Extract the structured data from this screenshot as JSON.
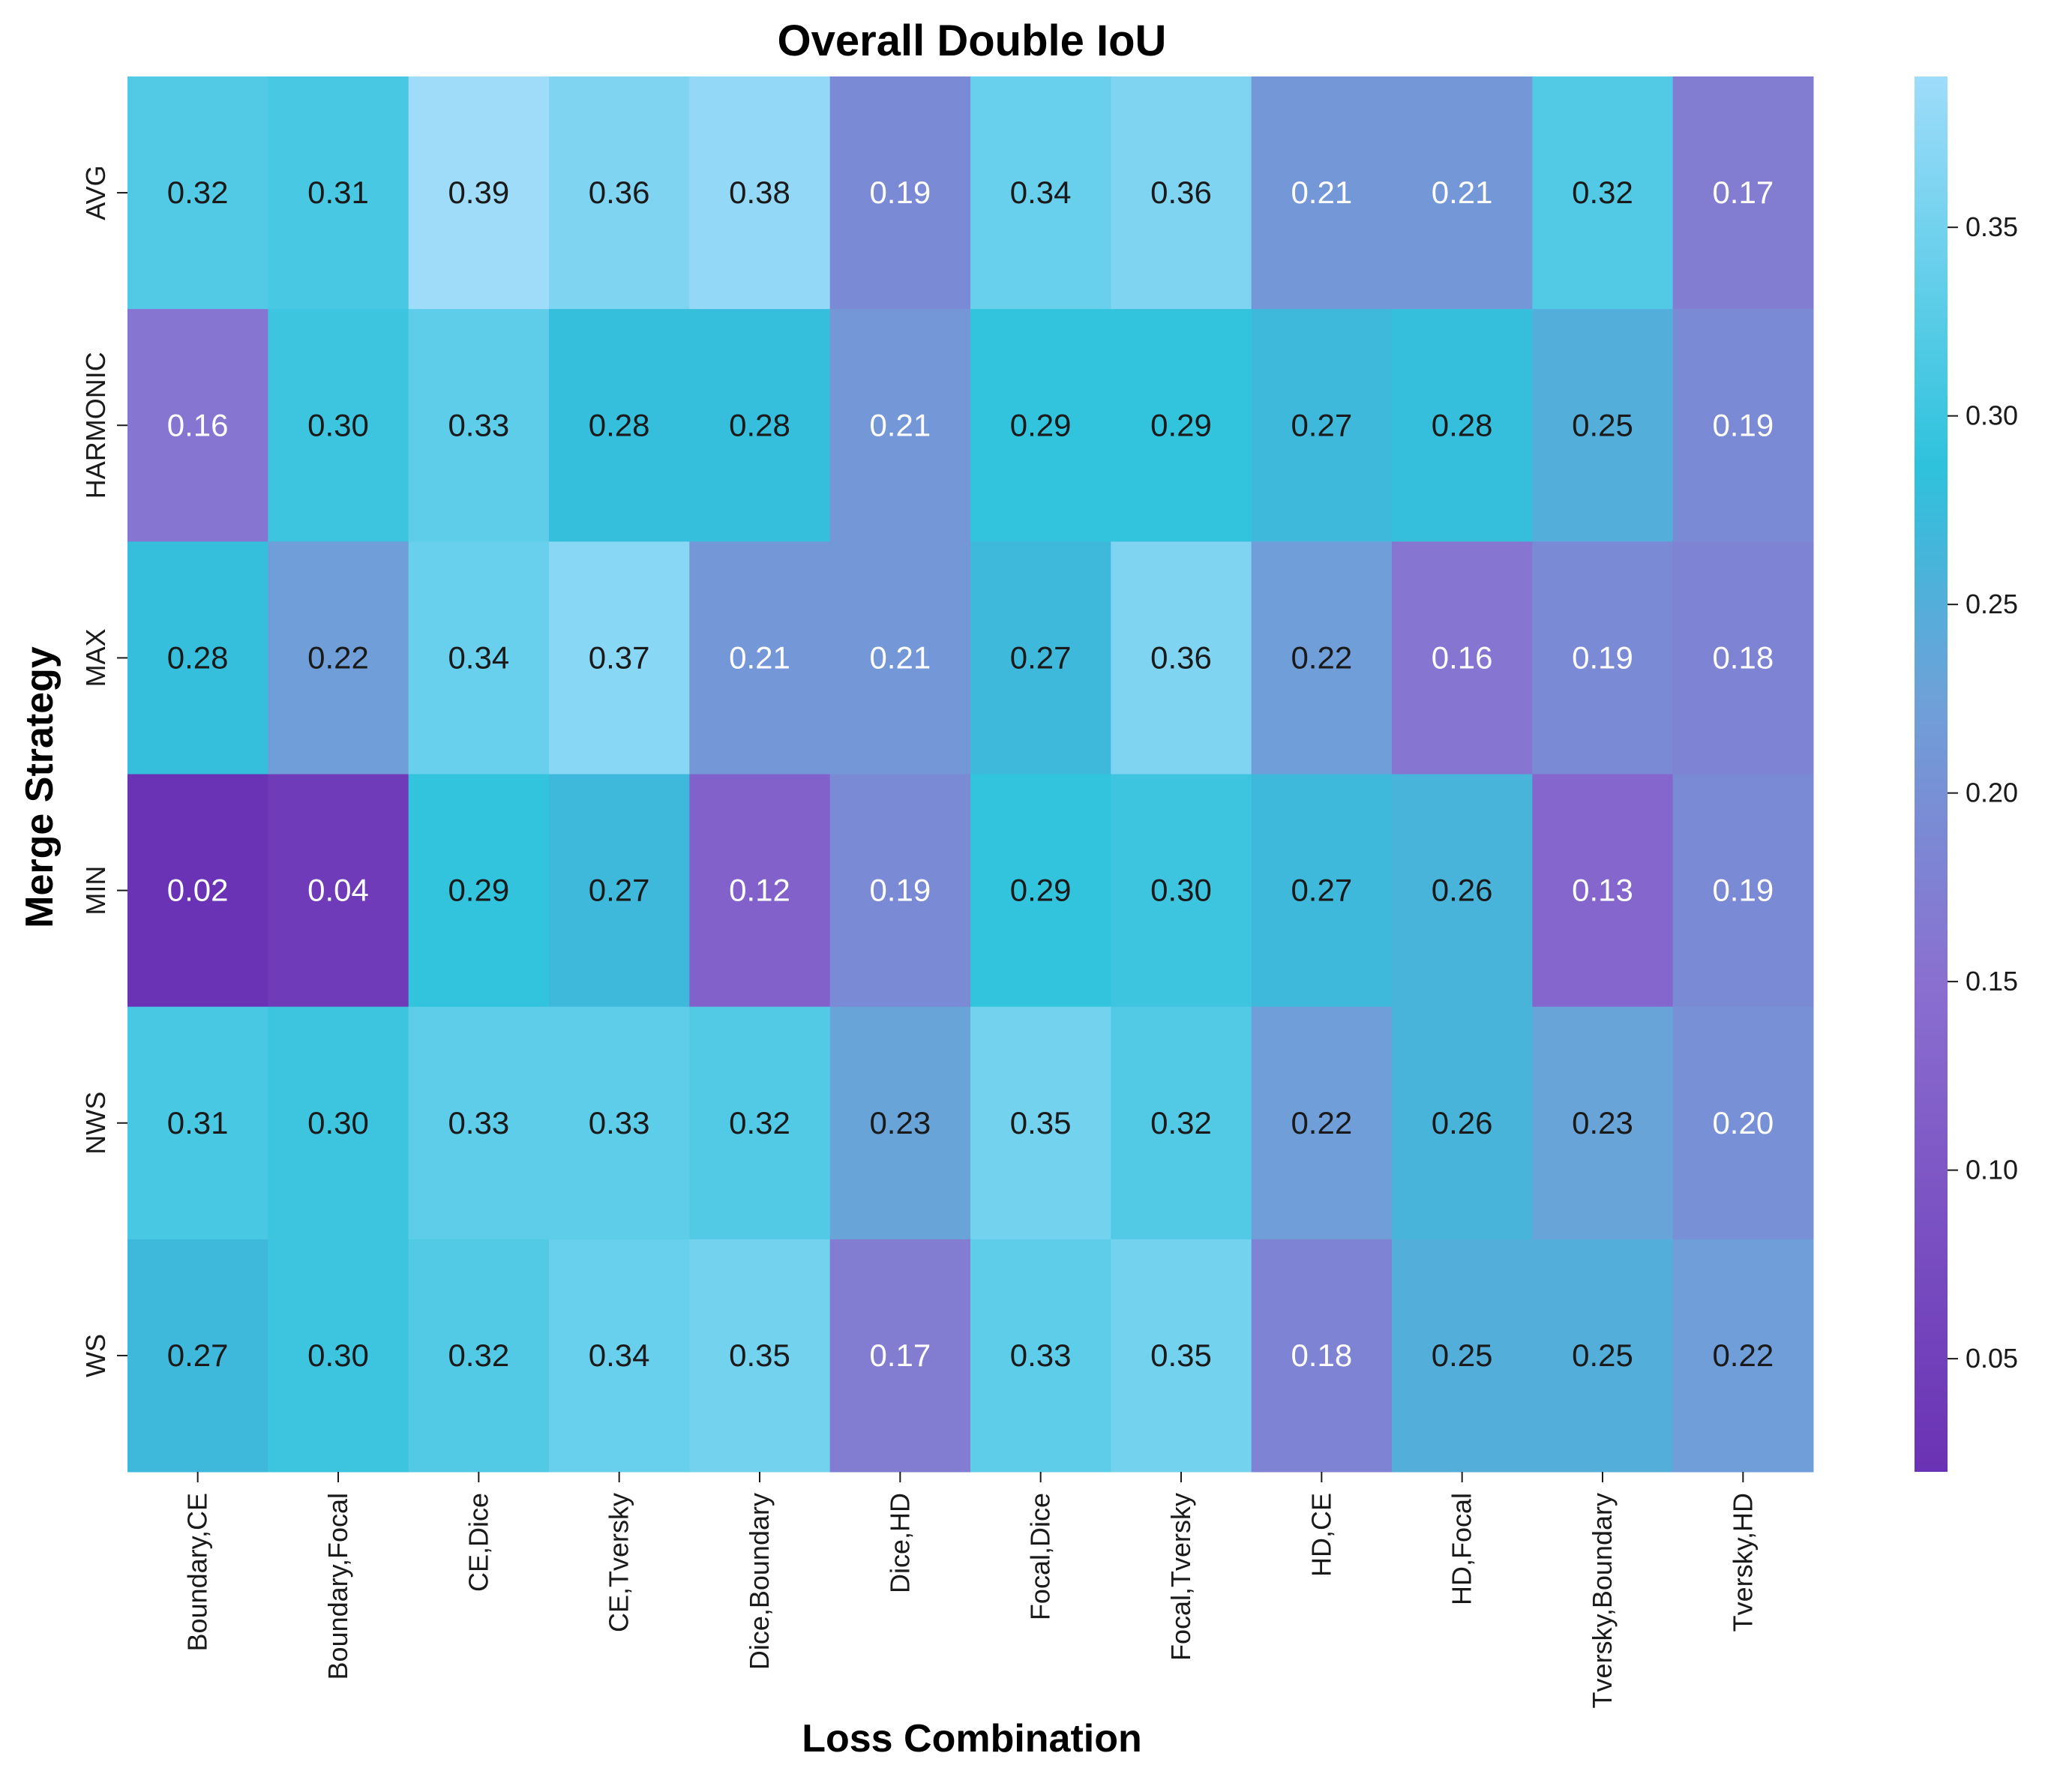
{
  "chart_data": {
    "type": "heatmap",
    "title": "Overall Double IoU",
    "xlabel": "Loss Combination",
    "ylabel": "Merge Strategy",
    "x_categories": [
      "Boundary,CE",
      "Boundary,Focal",
      "CE,Dice",
      "CE,Tversky",
      "Dice,Boundary",
      "Dice,HD",
      "Focal,Dice",
      "Focal,Tversky",
      "HD,CE",
      "HD,Focal",
      "Tversky,Boundary",
      "Tversky,HD"
    ],
    "y_categories": [
      "AVG",
      "HARMONIC",
      "MAX",
      "MIN",
      "NWS",
      "WS"
    ],
    "values": [
      [
        0.32,
        0.31,
        0.39,
        0.36,
        0.38,
        0.19,
        0.34,
        0.36,
        0.21,
        0.21,
        0.32,
        0.17
      ],
      [
        0.16,
        0.3,
        0.33,
        0.28,
        0.28,
        0.21,
        0.29,
        0.29,
        0.27,
        0.28,
        0.25,
        0.19
      ],
      [
        0.28,
        0.22,
        0.34,
        0.37,
        0.21,
        0.21,
        0.27,
        0.36,
        0.22,
        0.16,
        0.19,
        0.18
      ],
      [
        0.02,
        0.04,
        0.29,
        0.27,
        0.12,
        0.19,
        0.29,
        0.3,
        0.27,
        0.26,
        0.13,
        0.19
      ],
      [
        0.31,
        0.3,
        0.33,
        0.33,
        0.32,
        0.23,
        0.35,
        0.32,
        0.22,
        0.26,
        0.23,
        0.2
      ],
      [
        0.27,
        0.3,
        0.32,
        0.34,
        0.35,
        0.17,
        0.33,
        0.35,
        0.18,
        0.25,
        0.25,
        0.22
      ]
    ],
    "cell_labels": [
      [
        "0.32",
        "0.31",
        "0.39",
        "0.36",
        "0.38",
        "0.19",
        "0.34",
        "0.36",
        "0.21",
        "0.21",
        "0.32",
        "0.17"
      ],
      [
        "0.16",
        "0.30",
        "0.33",
        "0.28",
        "0.28",
        "0.21",
        "0.29",
        "0.29",
        "0.27",
        "0.28",
        "0.25",
        "0.19"
      ],
      [
        "0.28",
        "0.22",
        "0.34",
        "0.37",
        "0.21",
        "0.21",
        "0.27",
        "0.36",
        "0.22",
        "0.16",
        "0.19",
        "0.18"
      ],
      [
        "0.02",
        "0.04",
        "0.29",
        "0.27",
        "0.12",
        "0.19",
        "0.29",
        "0.30",
        "0.27",
        "0.26",
        "0.13",
        "0.19"
      ],
      [
        "0.31",
        "0.30",
        "0.33",
        "0.33",
        "0.32",
        "0.23",
        "0.35",
        "0.32",
        "0.22",
        "0.26",
        "0.23",
        "0.20"
      ],
      [
        "0.27",
        "0.30",
        "0.32",
        "0.34",
        "0.35",
        "0.17",
        "0.33",
        "0.35",
        "0.18",
        "0.25",
        "0.25",
        "0.22"
      ]
    ],
    "colorbar": {
      "range": [
        0.02,
        0.39
      ],
      "ticks": [
        0.05,
        0.1,
        0.15,
        0.2,
        0.25,
        0.3,
        0.35
      ],
      "tick_labels": [
        "0.05",
        "0.10",
        "0.15",
        "0.20",
        "0.25",
        "0.30",
        "0.35"
      ],
      "colors": [
        "#6a32b4",
        "#8a6fd0",
        "#6fa0d8",
        "#2ec2dc",
        "#9edcfa"
      ],
      "stops": [
        0.0,
        0.35,
        0.55,
        0.72,
        1.0
      ]
    },
    "annotation_colors": {
      "dark_text": "#1a1a1a",
      "light_text": "#ffffff"
    },
    "grid": false,
    "legend": "colorbar-right"
  }
}
